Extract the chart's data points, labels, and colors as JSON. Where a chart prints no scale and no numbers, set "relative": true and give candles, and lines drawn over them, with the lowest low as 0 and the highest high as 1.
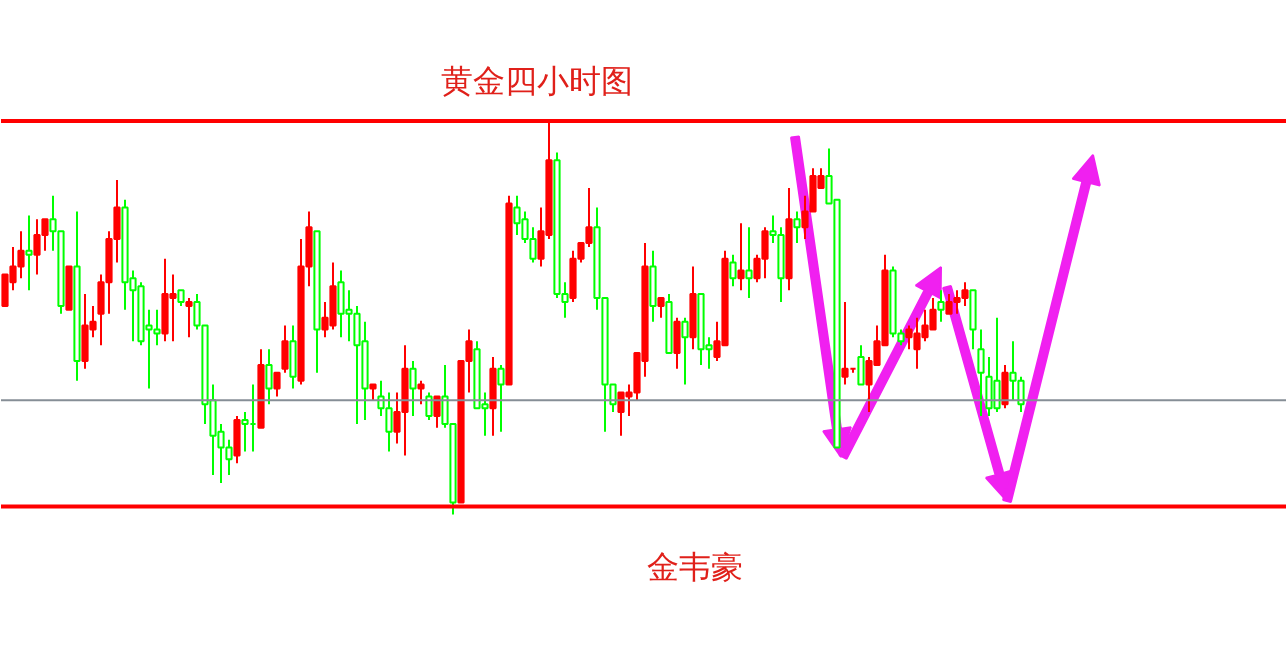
{
  "chart_data": {
    "type": "candlestick",
    "title": "黄金四小时图",
    "relative": true,
    "annotations": [
      "金韦豪"
    ],
    "categories": [
      null,
      null,
      null,
      null,
      null,
      null,
      null,
      null,
      null,
      null,
      null,
      null,
      null,
      null,
      null,
      null,
      null,
      null,
      null,
      null,
      null,
      null,
      null,
      null,
      null,
      null,
      null,
      null,
      null,
      null,
      null,
      null,
      null,
      null,
      null,
      null,
      null,
      null,
      null,
      null,
      null,
      null,
      null,
      null,
      null,
      null,
      null,
      null,
      null,
      null,
      null,
      null,
      null,
      null,
      null,
      null,
      null,
      null,
      null,
      null,
      null,
      null,
      null,
      null,
      null,
      null,
      null,
      null,
      null,
      null,
      null,
      null,
      null,
      null,
      null,
      null,
      null,
      null,
      null,
      null,
      null,
      null,
      null,
      null,
      null,
      null,
      null,
      null,
      null,
      null,
      null,
      null,
      null,
      null,
      null,
      null,
      null,
      null,
      null,
      null,
      null,
      null,
      null,
      null,
      null,
      null,
      null,
      null,
      null,
      null,
      null,
      null,
      null,
      null,
      null,
      null,
      null,
      null,
      null,
      null,
      null,
      null,
      null,
      null,
      null,
      null,
      null,
      null
    ],
    "ohlc": [
      [
        0.53,
        0.61,
        0.53,
        0.61
      ],
      [
        0.59,
        0.68,
        0.57,
        0.63
      ],
      [
        0.63,
        0.72,
        0.6,
        0.67
      ],
      [
        0.67,
        0.76,
        0.57,
        0.66
      ],
      [
        0.66,
        0.75,
        0.61,
        0.71
      ],
      [
        0.71,
        0.75,
        0.67,
        0.75
      ],
      [
        0.75,
        0.81,
        0.67,
        0.72
      ],
      [
        0.72,
        0.72,
        0.51,
        0.53
      ],
      [
        0.52,
        0.63,
        0.52,
        0.63
      ],
      [
        0.63,
        0.77,
        0.34,
        0.39
      ],
      [
        0.39,
        0.56,
        0.37,
        0.48
      ],
      [
        0.47,
        0.53,
        0.45,
        0.49
      ],
      [
        0.51,
        0.61,
        0.43,
        0.59
      ],
      [
        0.59,
        0.72,
        0.51,
        0.7
      ],
      [
        0.7,
        0.85,
        0.64,
        0.78
      ],
      [
        0.78,
        0.8,
        0.52,
        0.59
      ],
      [
        0.6,
        0.62,
        0.44,
        0.57
      ],
      [
        0.58,
        0.59,
        0.43,
        0.44
      ],
      [
        0.48,
        0.52,
        0.32,
        0.47
      ],
      [
        0.47,
        0.52,
        0.43,
        0.46
      ],
      [
        0.46,
        0.65,
        0.44,
        0.56
      ],
      [
        0.55,
        0.61,
        0.44,
        0.56
      ],
      [
        0.57,
        0.57,
        0.53,
        0.54
      ],
      [
        0.53,
        0.55,
        0.45,
        0.54
      ],
      [
        0.54,
        0.56,
        0.47,
        0.48
      ],
      [
        0.48,
        0.48,
        0.23,
        0.28
      ],
      [
        0.29,
        0.33,
        0.1,
        0.2
      ],
      [
        0.21,
        0.23,
        0.08,
        0.17
      ],
      [
        0.17,
        0.19,
        0.1,
        0.14
      ],
      [
        0.15,
        0.25,
        0.13,
        0.24
      ],
      [
        0.24,
        0.26,
        0.16,
        0.23
      ],
      [
        0.23,
        0.33,
        0.16,
        0.23
      ],
      [
        0.22,
        0.42,
        0.22,
        0.38
      ],
      [
        0.38,
        0.42,
        0.28,
        0.32
      ],
      [
        0.32,
        0.36,
        0.3,
        0.36
      ],
      [
        0.37,
        0.48,
        0.36,
        0.44
      ],
      [
        0.44,
        0.48,
        0.32,
        0.35
      ],
      [
        0.34,
        0.7,
        0.33,
        0.63
      ],
      [
        0.63,
        0.77,
        0.58,
        0.73
      ],
      [
        0.72,
        0.72,
        0.36,
        0.47
      ],
      [
        0.47,
        0.54,
        0.45,
        0.5
      ],
      [
        0.48,
        0.64,
        0.47,
        0.58
      ],
      [
        0.59,
        0.62,
        0.45,
        0.51
      ],
      [
        0.52,
        0.57,
        0.44,
        0.51
      ],
      [
        0.51,
        0.53,
        0.23,
        0.43
      ],
      [
        0.44,
        0.49,
        0.24,
        0.32
      ],
      [
        0.32,
        0.33,
        0.29,
        0.33
      ],
      [
        0.3,
        0.34,
        0.25,
        0.27
      ],
      [
        0.27,
        0.31,
        0.16,
        0.21
      ],
      [
        0.21,
        0.31,
        0.18,
        0.26
      ],
      [
        0.26,
        0.43,
        0.15,
        0.37
      ],
      [
        0.37,
        0.39,
        0.25,
        0.32
      ],
      [
        0.32,
        0.34,
        0.28,
        0.33
      ],
      [
        0.3,
        0.31,
        0.24,
        0.25
      ],
      [
        0.25,
        0.3,
        0.22,
        0.3
      ],
      [
        0.3,
        0.38,
        0.22,
        0.23
      ],
      [
        0.23,
        0.23,
        0,
        0.03
      ],
      [
        0.03,
        0.39,
        0.03,
        0.39
      ],
      [
        0.39,
        0.47,
        0.31,
        0.44
      ],
      [
        0.42,
        0.44,
        0.27,
        0.27
      ],
      [
        0.28,
        0.31,
        0.2,
        0.27
      ],
      [
        0.27,
        0.4,
        0.2,
        0.37
      ],
      [
        0.37,
        0.38,
        0.21,
        0.33
      ],
      [
        0.33,
        0.81,
        0.33,
        0.79
      ],
      [
        0.78,
        0.81,
        0.71,
        0.74
      ],
      [
        0.75,
        0.77,
        0.69,
        0.7
      ],
      [
        0.7,
        0.73,
        0.64,
        0.65
      ],
      [
        0.65,
        0.78,
        0.63,
        0.72
      ],
      [
        0.71,
        1,
        0.7,
        0.9
      ],
      [
        0.9,
        0.92,
        0.55,
        0.56
      ],
      [
        0.56,
        0.59,
        0.5,
        0.54
      ],
      [
        0.55,
        0.67,
        0.54,
        0.65
      ],
      [
        0.65,
        0.69,
        0.64,
        0.69
      ],
      [
        0.69,
        0.83,
        0.68,
        0.73
      ],
      [
        0.73,
        0.78,
        0.52,
        0.55
      ],
      [
        0.55,
        0.55,
        0.21,
        0.33
      ],
      [
        0.33,
        0.33,
        0.26,
        0.28
      ],
      [
        0.26,
        0.31,
        0.2,
        0.31
      ],
      [
        0.3,
        0.33,
        0.25,
        0.31
      ],
      [
        0.31,
        0.41,
        0.29,
        0.41
      ],
      [
        0.39,
        0.69,
        0.35,
        0.63
      ],
      [
        0.63,
        0.67,
        0.49,
        0.53
      ],
      [
        0.53,
        0.55,
        0.5,
        0.55
      ],
      [
        0.54,
        0.56,
        0.41,
        0.41
      ],
      [
        0.41,
        0.5,
        0.37,
        0.49
      ],
      [
        0.49,
        0.5,
        0.33,
        0.45
      ],
      [
        0.45,
        0.63,
        0.42,
        0.56
      ],
      [
        0.56,
        0.56,
        0.38,
        0.42
      ],
      [
        0.43,
        0.45,
        0.37,
        0.42
      ],
      [
        0.4,
        0.49,
        0.39,
        0.44
      ],
      [
        0.43,
        0.67,
        0.43,
        0.65
      ],
      [
        0.64,
        0.66,
        0.58,
        0.6
      ],
      [
        0.6,
        0.74,
        0.57,
        0.62
      ],
      [
        0.62,
        0.73,
        0.55,
        0.6
      ],
      [
        0.6,
        0.66,
        0.59,
        0.65
      ],
      [
        0.65,
        0.73,
        0.6,
        0.72
      ],
      [
        0.72,
        0.76,
        0.69,
        0.71
      ],
      [
        0.71,
        0.73,
        0.54,
        0.6
      ],
      [
        0.6,
        0.83,
        0.57,
        0.75
      ],
      [
        0.75,
        0.77,
        0.69,
        0.73
      ],
      [
        0.73,
        0.81,
        0.7,
        0.77
      ],
      [
        0.77,
        0.88,
        0.77,
        0.86
      ],
      [
        0.83,
        0.88,
        0.83,
        0.86
      ],
      [
        0.86,
        0.93,
        0.79,
        0.79
      ],
      [
        0.8,
        0.8,
        0.17,
        0.17
      ],
      [
        0.35,
        0.54,
        0.33,
        0.37
      ],
      [
        0.37,
        0.37,
        0.36,
        0.37
      ],
      [
        0.4,
        0.43,
        0.33,
        0.33
      ],
      [
        0.33,
        0.4,
        0.26,
        0.39
      ],
      [
        0.38,
        0.48,
        0.38,
        0.44
      ],
      [
        0.43,
        0.66,
        0.43,
        0.62
      ],
      [
        0.62,
        0.63,
        0.45,
        0.46
      ],
      [
        0.46,
        0.47,
        0.43,
        0.44
      ],
      [
        0.45,
        0.48,
        0.42,
        0.47
      ],
      [
        0.42,
        0.5,
        0.37,
        0.46
      ],
      [
        0.45,
        0.52,
        0.44,
        0.48
      ],
      [
        0.47,
        0.55,
        0.47,
        0.52
      ],
      [
        0.54,
        0.57,
        0.49,
        0.52
      ],
      [
        0.51,
        0.56,
        0.51,
        0.54
      ],
      [
        0.54,
        0.57,
        0.51,
        0.55
      ],
      [
        0.55,
        0.59,
        0.53,
        0.57
      ],
      [
        0.57,
        0.57,
        0.42,
        0.47
      ],
      [
        0.42,
        0.47,
        0.25,
        0.36
      ],
      [
        0.35,
        0.4,
        0.25,
        0.27
      ],
      [
        0.34,
        0.5,
        0.26,
        0.27
      ],
      [
        0.28,
        0.38,
        0.27,
        0.36
      ],
      [
        0.36,
        0.44,
        0.29,
        0.34
      ],
      [
        0.34,
        0.35,
        0.26,
        0.28
      ]
    ],
    "colors": [
      "#ff0000",
      "#ff0000",
      "#ff0000",
      "#00ff00",
      "#ff0000",
      "#ff0000",
      "#00ff00",
      "#00ff00",
      "#ff0000",
      "#00ff00",
      "#ff0000",
      "#ff0000",
      "#ff0000",
      "#ff0000",
      "#ff0000",
      "#00ff00",
      "#00ff00",
      "#00ff00",
      "#00ff00",
      "#00ff00",
      "#ff0000",
      "#ff0000",
      "#00ff00",
      "#ff0000",
      "#00ff00",
      "#00ff00",
      "#00ff00",
      "#00ff00",
      "#00ff00",
      "#ff0000",
      "#00ff00",
      "#00ff00",
      "#ff0000",
      "#00ff00",
      "#ff0000",
      "#ff0000",
      "#00ff00",
      "#ff0000",
      "#ff0000",
      "#00ff00",
      "#ff0000",
      "#ff0000",
      "#00ff00",
      "#00ff00",
      "#00ff00",
      "#00ff00",
      "#ff0000",
      "#00ff00",
      "#00ff00",
      "#ff0000",
      "#ff0000",
      "#00ff00",
      "#ff0000",
      "#00ff00",
      "#ff0000",
      "#00ff00",
      "#00ff00",
      "#ff0000",
      "#ff0000",
      "#00ff00",
      "#00ff00",
      "#ff0000",
      "#00ff00",
      "#ff0000",
      "#00ff00",
      "#00ff00",
      "#00ff00",
      "#ff0000",
      "#ff0000",
      "#00ff00",
      "#00ff00",
      "#ff0000",
      "#ff0000",
      "#ff0000",
      "#00ff00",
      "#00ff00",
      "#00ff00",
      "#ff0000",
      "#ff0000",
      "#ff0000",
      "#ff0000",
      "#00ff00",
      "#ff0000",
      "#00ff00",
      "#ff0000",
      "#00ff00",
      "#ff0000",
      "#00ff00",
      "#00ff00",
      "#ff0000",
      "#ff0000",
      "#00ff00",
      "#ff0000",
      "#00ff00",
      "#ff0000",
      "#ff0000",
      "#00ff00",
      "#00ff00",
      "#ff0000",
      "#00ff00",
      "#ff0000",
      "#ff0000",
      "#ff0000",
      "#00ff00",
      "#00ff00",
      "#ff0000",
      "#ff0000",
      "#00ff00",
      "#ff0000",
      "#ff0000",
      "#ff0000",
      "#00ff00",
      "#00ff00",
      "#ff0000",
      "#ff0000",
      "#ff0000",
      "#ff0000",
      "#00ff00",
      "#ff0000",
      "#ff0000",
      "#ff0000",
      "#00ff00",
      "#00ff00",
      "#00ff00",
      "#00ff00",
      "#ff0000",
      "#00ff00",
      "#00ff00"
    ],
    "ref_lines": [
      {
        "axis": "y",
        "value": 1,
        "color": "#ff0000"
      },
      {
        "axis": "y",
        "value": 0.02,
        "color": "#ff0000"
      },
      {
        "axis": "y",
        "value": 0.29,
        "color": "#868e96"
      }
    ]
  }
}
